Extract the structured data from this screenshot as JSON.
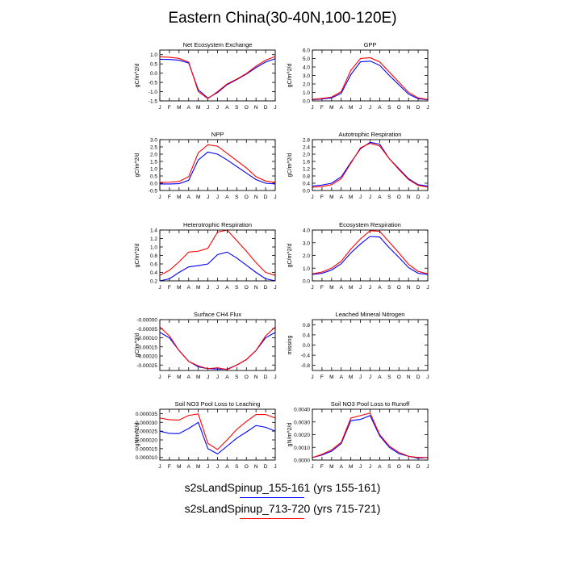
{
  "figure": {
    "title": "Eastern China(30-40N,100-120E)",
    "month_labels": [
      "J",
      "F",
      "M",
      "A",
      "M",
      "J",
      "J",
      "A",
      "S",
      "O",
      "N",
      "D",
      "J"
    ],
    "legend": [
      {
        "label": "s2sLandSpinup_155-161 (yrs 155-161)",
        "color": "#0000ff"
      },
      {
        "label": "s2sLandSpinup_713-720 (yrs 715-721)",
        "color": "#ff0000"
      }
    ]
  },
  "chart_data": [
    {
      "type": "line",
      "title": "Net Ecosystem Exchange",
      "ylabel": "gC/m^2/d",
      "ylim": [
        -1.5,
        1.25
      ],
      "yticks": [
        -1.5,
        -1.0,
        -0.5,
        0.0,
        0.5,
        1.0
      ],
      "ytick_labels": [
        "-1.5",
        "-1.0",
        "-0.5",
        "0.0",
        "0.5",
        "1.0"
      ],
      "series": [
        {
          "color": "#0000ff",
          "values": [
            0.75,
            0.74,
            0.7,
            0.55,
            -0.9,
            -1.35,
            -1.05,
            -0.62,
            -0.35,
            -0.05,
            0.3,
            0.6,
            0.78
          ]
        },
        {
          "color": "#ff0000",
          "values": [
            0.88,
            0.86,
            0.8,
            0.6,
            -1.0,
            -1.38,
            -1.0,
            -0.58,
            -0.32,
            -0.02,
            0.38,
            0.7,
            0.9
          ]
        }
      ]
    },
    {
      "type": "line",
      "title": "GPP",
      "ylabel": "gC/m^2/d",
      "ylim": [
        0,
        6
      ],
      "yticks": [
        0,
        1,
        2,
        3,
        4,
        5,
        6
      ],
      "ytick_labels": [
        "0.0",
        "1.0",
        "2.0",
        "3.0",
        "4.0",
        "5.0",
        "6.0"
      ],
      "series": [
        {
          "color": "#0000ff",
          "values": [
            0.15,
            0.22,
            0.35,
            0.9,
            3.1,
            4.6,
            4.7,
            4.2,
            3.0,
            1.9,
            0.8,
            0.25,
            0.15
          ]
        },
        {
          "color": "#ff0000",
          "values": [
            0.18,
            0.28,
            0.45,
            1.1,
            3.6,
            5.0,
            5.1,
            4.6,
            3.4,
            2.2,
            1.0,
            0.35,
            0.18
          ]
        }
      ]
    },
    {
      "type": "line",
      "title": "NPP",
      "ylabel": "gC/m^2/d",
      "ylim": [
        -0.5,
        3.0
      ],
      "yticks": [
        -0.5,
        0,
        0.5,
        1.0,
        1.5,
        2.0,
        2.5,
        3.0
      ],
      "ytick_labels": [
        "-0.5",
        "0.0",
        "0.5",
        "1.0",
        "1.5",
        "2.0",
        "2.5",
        "3.0"
      ],
      "series": [
        {
          "color": "#0000ff",
          "values": [
            -0.05,
            -0.05,
            -0.03,
            0.2,
            1.6,
            2.15,
            2.0,
            1.6,
            1.15,
            0.7,
            0.25,
            0.0,
            -0.05
          ]
        },
        {
          "color": "#ff0000",
          "values": [
            0.05,
            0.07,
            0.12,
            0.45,
            2.1,
            2.65,
            2.55,
            2.05,
            1.55,
            1.05,
            0.45,
            0.15,
            0.05
          ]
        }
      ]
    },
    {
      "type": "line",
      "title": "Autotrophic Respiration",
      "ylabel": "gC/m^2/d",
      "ylim": [
        0,
        2.8
      ],
      "yticks": [
        0,
        0.4,
        0.8,
        1.2,
        1.6,
        2.0,
        2.4,
        2.8
      ],
      "ytick_labels": [
        "0.0",
        "0.4",
        "0.8",
        "1.2",
        "1.6",
        "2.0",
        "2.4",
        "2.8"
      ],
      "series": [
        {
          "color": "#0000ff",
          "values": [
            0.25,
            0.3,
            0.4,
            0.75,
            1.55,
            2.3,
            2.65,
            2.55,
            1.75,
            1.2,
            0.65,
            0.32,
            0.25
          ]
        },
        {
          "color": "#ff0000",
          "values": [
            0.18,
            0.22,
            0.32,
            0.65,
            1.5,
            2.35,
            2.6,
            2.45,
            1.75,
            1.15,
            0.6,
            0.28,
            0.18
          ]
        }
      ]
    },
    {
      "type": "line",
      "title": "Heterotrophic Respiration",
      "ylabel": "gC/m^2/d",
      "ylim": [
        0.2,
        1.4
      ],
      "yticks": [
        0.2,
        0.4,
        0.6,
        0.8,
        1.0,
        1.2,
        1.4
      ],
      "ytick_labels": [
        "0.2",
        "0.4",
        "0.6",
        "0.8",
        "1.0",
        "1.2",
        "1.4"
      ],
      "series": [
        {
          "color": "#0000ff",
          "values": [
            0.2,
            0.25,
            0.4,
            0.53,
            0.56,
            0.6,
            0.82,
            0.88,
            0.74,
            0.57,
            0.4,
            0.25,
            0.2
          ]
        },
        {
          "color": "#ff0000",
          "values": [
            0.33,
            0.45,
            0.65,
            0.88,
            0.9,
            0.97,
            1.35,
            1.4,
            1.15,
            0.9,
            0.63,
            0.4,
            0.33
          ]
        }
      ]
    },
    {
      "type": "line",
      "title": "Ecosystem Respiration",
      "ylabel": "gC/m^2/d",
      "ylim": [
        0,
        4
      ],
      "yticks": [
        0,
        1,
        2,
        3,
        4
      ],
      "ytick_labels": [
        "0.0",
        "1.0",
        "2.0",
        "3.0",
        "4.0"
      ],
      "series": [
        {
          "color": "#0000ff",
          "values": [
            0.5,
            0.6,
            0.85,
            1.35,
            2.2,
            2.9,
            3.5,
            3.45,
            2.6,
            1.85,
            1.05,
            0.6,
            0.5
          ]
        },
        {
          "color": "#ff0000",
          "values": [
            0.55,
            0.7,
            1.0,
            1.55,
            2.5,
            3.3,
            3.95,
            3.9,
            3.05,
            2.2,
            1.3,
            0.75,
            0.55
          ]
        }
      ]
    },
    {
      "type": "line",
      "title": "Surface CH4 Flux",
      "ylabel": "gC/m^2/d",
      "ylim": [
        -0.00028,
        0.0
      ],
      "yticks": [
        -0.00025,
        -0.0002,
        -0.00015,
        -0.0001,
        -5e-05,
        0.0
      ],
      "ytick_labels": [
        "-0.00025",
        "-0.00020",
        "-0.00015",
        "-0.00010",
        "-0.00005",
        "-0.00000"
      ],
      "series": [
        {
          "color": "#0000ff",
          "values": [
            -7e-05,
            -0.0001,
            -0.00017,
            -0.00023,
            -0.00026,
            -0.00027,
            -0.000272,
            -0.000273,
            -0.00025,
            -0.00022,
            -0.00017,
            -0.0001,
            -7e-05
          ]
        },
        {
          "color": "#ff0000",
          "values": [
            -4e-05,
            -9e-05,
            -0.00017,
            -0.00023,
            -0.000255,
            -0.00027,
            -0.000265,
            -0.000275,
            -0.00025,
            -0.00022,
            -0.00017,
            -9e-05,
            -4e-05
          ]
        }
      ]
    },
    {
      "type": "line",
      "title": "Leached Mineral Nitrogen",
      "ylabel": "missing",
      "ylim": [
        -1.0,
        1.0
      ],
      "yticks": [
        -0.8,
        -0.4,
        0.0,
        0.4,
        0.8
      ],
      "ytick_labels": [
        "-0.8",
        "-0.4",
        "0.0",
        "0.4",
        "0.8"
      ],
      "series": []
    },
    {
      "type": "line",
      "title": "Soil NO3 Pool Loss to Leaching",
      "ylabel": "gN/m^2/d",
      "ylim": [
        8.5e-06,
        3.75e-05
      ],
      "yticks": [
        1e-05,
        1.5e-05,
        2e-05,
        2.5e-05,
        3e-05,
        3.5e-05
      ],
      "ytick_labels": [
        "0.000010",
        "0.000015",
        "0.000020",
        "0.000025",
        "0.000030",
        "0.000035"
      ],
      "series": [
        {
          "color": "#0000ff",
          "values": [
            2.5e-05,
            2.37e-05,
            2.36e-05,
            2.65e-05,
            3e-05,
            1.5e-05,
            1.2e-05,
            1.65e-05,
            2.1e-05,
            2.45e-05,
            2.82e-05,
            2.72e-05,
            2.5e-05
          ]
        },
        {
          "color": "#ff0000",
          "values": [
            3.25e-05,
            3.15e-05,
            3.13e-05,
            3.4e-05,
            3.48e-05,
            1.8e-05,
            1.45e-05,
            2e-05,
            2.6e-05,
            3.05e-05,
            3.45e-05,
            3.45e-05,
            3.25e-05
          ]
        }
      ]
    },
    {
      "type": "line",
      "title": "Soil NO3 Pool Loss to Runoff",
      "ylabel": "gN/m^2/d",
      "ylim": [
        0,
        0.004
      ],
      "yticks": [
        0,
        0.001,
        0.002,
        0.003,
        0.004
      ],
      "ytick_labels": [
        "0.0000",
        "0.0010",
        "0.0020",
        "0.0030",
        "0.0040"
      ],
      "series": [
        {
          "color": "#0000ff",
          "values": [
            0.0002,
            0.0004,
            0.0007,
            0.0013,
            0.0031,
            0.0032,
            0.0035,
            0.0019,
            0.001,
            0.0005,
            0.0003,
            0.00015,
            0.0002
          ]
        },
        {
          "color": "#ff0000",
          "values": [
            0.0002,
            0.00045,
            0.0008,
            0.0014,
            0.0033,
            0.0035,
            0.0037,
            0.002,
            0.0011,
            0.0006,
            0.0003,
            0.0002,
            0.0002
          ]
        }
      ]
    }
  ]
}
